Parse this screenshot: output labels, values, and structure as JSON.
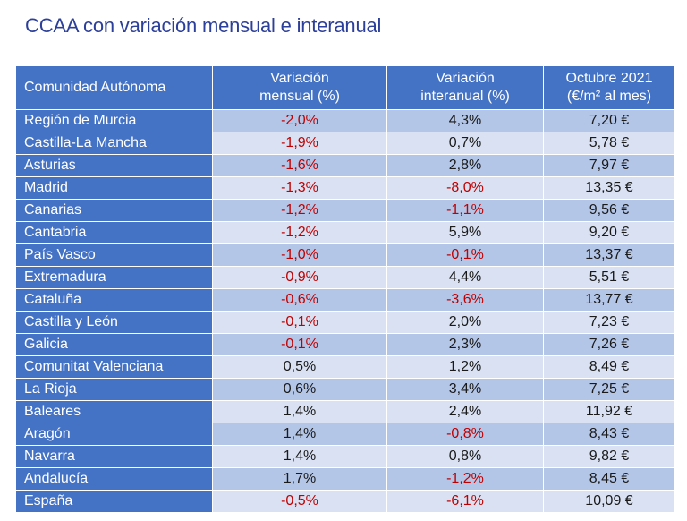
{
  "title": "CCAA con variación mensual e interanual",
  "table": {
    "headers": {
      "region": "Comunidad Autónoma",
      "monthly_line1": "Variación",
      "monthly_line2": "mensual (%)",
      "annual_line1": "Variación",
      "annual_line2": "interanual (%)",
      "price_line1": "Octubre 2021",
      "price_line2": "(€/m² al mes)"
    },
    "rows": [
      {
        "region": "Región de Murcia",
        "monthly": "-2,0%",
        "annual": "4,3%",
        "price": "7,20 €"
      },
      {
        "region": "Castilla-La Mancha",
        "monthly": "-1,9%",
        "annual": "0,7%",
        "price": "5,78 €"
      },
      {
        "region": "Asturias",
        "monthly": "-1,6%",
        "annual": "2,8%",
        "price": "7,97 €"
      },
      {
        "region": "Madrid",
        "monthly": "-1,3%",
        "annual": "-8,0%",
        "price": "13,35 €"
      },
      {
        "region": "Canarias",
        "monthly": "-1,2%",
        "annual": "-1,1%",
        "price": "9,56 €"
      },
      {
        "region": "Cantabria",
        "monthly": "-1,2%",
        "annual": "5,9%",
        "price": "9,20 €"
      },
      {
        "region": "País Vasco",
        "monthly": "-1,0%",
        "annual": "-0,1%",
        "price": "13,37 €"
      },
      {
        "region": "Extremadura",
        "monthly": "-0,9%",
        "annual": "4,4%",
        "price": "5,51 €"
      },
      {
        "region": "Cataluña",
        "monthly": "-0,6%",
        "annual": "-3,6%",
        "price": "13,77 €"
      },
      {
        "region": "Castilla y León",
        "monthly": "-0,1%",
        "annual": "2,0%",
        "price": "7,23 €"
      },
      {
        "region": "Galicia",
        "monthly": "-0,1%",
        "annual": "2,3%",
        "price": "7,26 €"
      },
      {
        "region": "Comunitat Valenciana",
        "monthly": "0,5%",
        "annual": "1,2%",
        "price": "8,49 €"
      },
      {
        "region": "La Rioja",
        "monthly": "0,6%",
        "annual": "3,4%",
        "price": "7,25 €"
      },
      {
        "region": "Baleares",
        "monthly": "1,4%",
        "annual": "2,4%",
        "price": "11,92 €"
      },
      {
        "region": "Aragón",
        "monthly": "1,4%",
        "annual": "-0,8%",
        "price": "8,43 €"
      },
      {
        "region": "Navarra",
        "monthly": "1,4%",
        "annual": "0,8%",
        "price": "9,82 €"
      },
      {
        "region": "Andalucía",
        "monthly": "1,7%",
        "annual": "-1,2%",
        "price": "8,45 €"
      },
      {
        "region": "España",
        "monthly": "-0,5%",
        "annual": "-6,1%",
        "price": "10,09 €"
      }
    ]
  },
  "colors": {
    "title": "#2c3f9a",
    "header": "#4472c4",
    "row_odd": "#b4c6e7",
    "row_even": "#d9e1f2",
    "negative": "#c00000"
  }
}
